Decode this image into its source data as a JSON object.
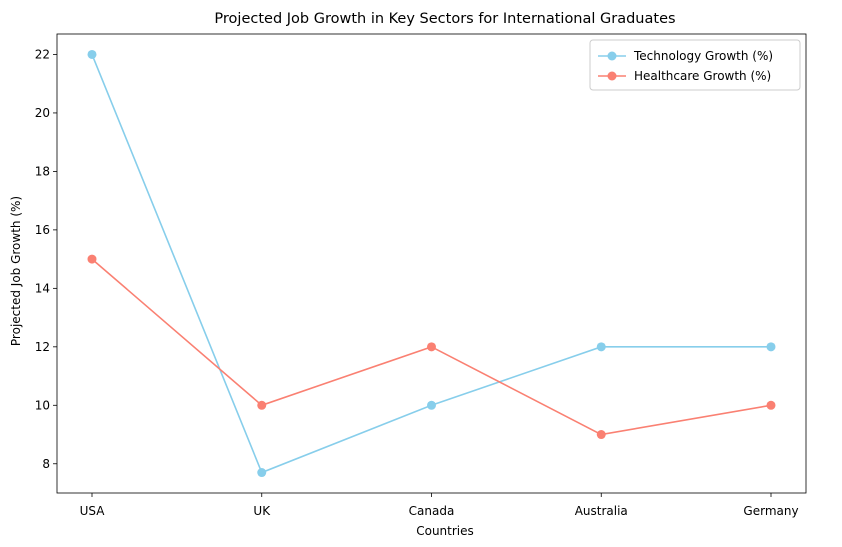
{
  "chart_data": {
    "type": "line",
    "title": "Projected Job Growth in Key Sectors for International Graduates",
    "xlabel": "Countries",
    "ylabel": "Projected Job Growth (%)",
    "categories": [
      "USA",
      "UK",
      "Canada",
      "Australia",
      "Germany"
    ],
    "ylim": [
      7,
      22.7
    ],
    "yticks": [
      8,
      10,
      12,
      14,
      16,
      18,
      20,
      22
    ],
    "grid": false,
    "legend_position": "top-right",
    "series": [
      {
        "name": "Technology Growth (%)",
        "color": "#87CEEB",
        "values": [
          22,
          7.7,
          10,
          12,
          12
        ]
      },
      {
        "name": "Healthcare Growth (%)",
        "color": "#FA8072",
        "values": [
          15,
          10,
          12,
          9,
          10
        ]
      }
    ]
  }
}
